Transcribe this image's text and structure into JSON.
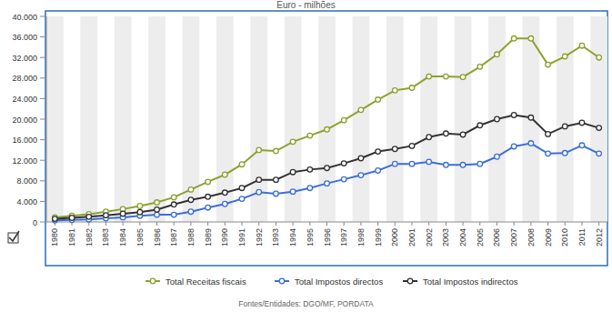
{
  "chart_data": {
    "type": "line",
    "title": "Euro - milhões",
    "source": "Fontes/Entidades: DGO/MF, PORDATA",
    "categories": [
      "1980",
      "1981",
      "1982",
      "1983",
      "1984",
      "1985",
      "1986",
      "1987",
      "1988",
      "1989",
      "1990",
      "1991",
      "1992",
      "1993",
      "1994",
      "1995",
      "1996",
      "1997",
      "1998",
      "1999",
      "2000",
      "2001",
      "2002",
      "2003",
      "2004",
      "2005",
      "2006",
      "2007",
      "2008",
      "2009",
      "2010",
      "2011",
      "2012"
    ],
    "series": [
      {
        "name": "Total Receitas fiscais",
        "color": "#8ca22e",
        "marker": "circle",
        "values": [
          900,
          1200,
          1500,
          2000,
          2500,
          3100,
          3800,
          4800,
          6300,
          7800,
          9200,
          11200,
          14000,
          13800,
          15600,
          16800,
          18000,
          19800,
          21800,
          23800,
          25600,
          26100,
          28300,
          28300,
          28200,
          30200,
          32600,
          35700,
          35700,
          30600,
          32200,
          34300,
          32000
        ]
      },
      {
        "name": "Total Impostos directos",
        "color": "#3b6fd8",
        "marker": "circle",
        "values": [
          300,
          400,
          500,
          700,
          900,
          1200,
          1400,
          1400,
          2000,
          2800,
          3500,
          4500,
          5800,
          5500,
          5900,
          6600,
          7500,
          8300,
          9100,
          10000,
          11300,
          11300,
          11700,
          11100,
          11100,
          11300,
          12700,
          14700,
          15300,
          13300,
          13400,
          14900,
          13300
        ]
      },
      {
        "name": "Total Impostos indirectos",
        "color": "#333333",
        "marker": "circle",
        "values": [
          600,
          800,
          1000,
          1300,
          1600,
          1900,
          2400,
          3400,
          4300,
          4900,
          5700,
          6600,
          8200,
          8200,
          9700,
          10200,
          10500,
          11400,
          12400,
          13700,
          14200,
          14800,
          16500,
          17200,
          17000,
          18800,
          20000,
          20800,
          20300,
          17100,
          18600,
          19300,
          18300
        ]
      }
    ],
    "ylim": [
      0,
      40000
    ],
    "yticks": [
      0,
      {
        "value": 4000,
        "label": "4.000"
      },
      {
        "value": 8000,
        "label": "8.000"
      },
      {
        "value": 12000,
        "label": "12.000"
      },
      {
        "value": 16000,
        "label": "16.000"
      },
      {
        "value": 20000,
        "label": "20.000"
      },
      {
        "value": 24000,
        "label": "24.000"
      },
      {
        "value": 28000,
        "label": "28.000"
      },
      {
        "value": 32000,
        "label": "32.000"
      },
      {
        "value": 36000,
        "label": "36.000"
      },
      {
        "value": 40000,
        "label": "40.000"
      }
    ],
    "grid": false,
    "legend": "bottom"
  }
}
